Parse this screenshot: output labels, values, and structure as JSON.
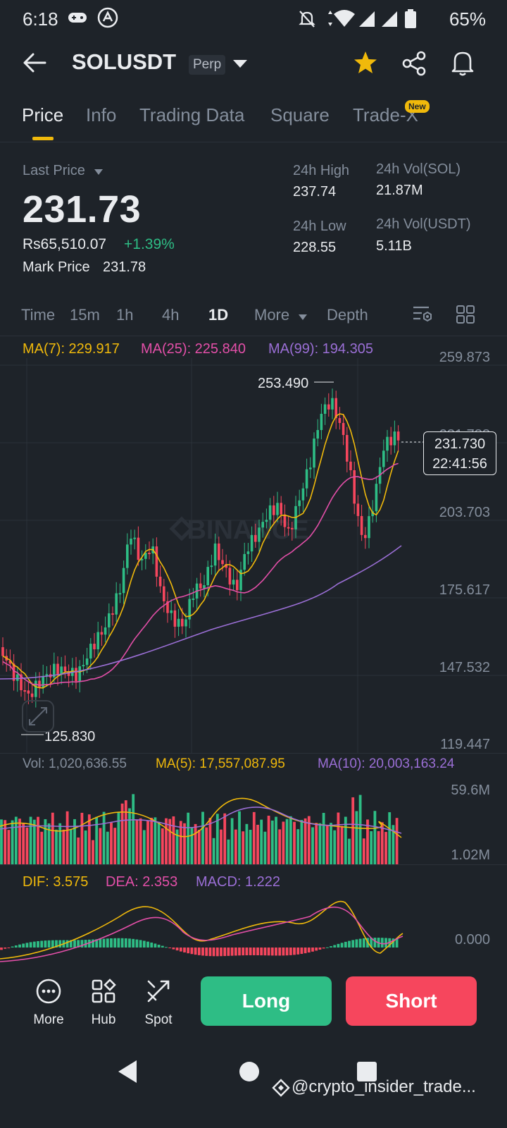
{
  "status": {
    "time": "6:18",
    "battery": "65%"
  },
  "header": {
    "symbol": "SOLUSDT",
    "badge": "Perp"
  },
  "tabs": [
    {
      "label": "Price",
      "active": true
    },
    {
      "label": "Info"
    },
    {
      "label": "Trading Data"
    },
    {
      "label": "Square"
    },
    {
      "label": "Trade-X",
      "badge": "New"
    }
  ],
  "price": {
    "last_label": "Last Price",
    "last": "231.73",
    "fiat": "Rs65,510.07",
    "change": "+1.39%",
    "mark_label": "Mark Price",
    "mark": "231.78"
  },
  "stats": {
    "high_label": "24h High",
    "high": "237.74",
    "low_label": "24h Low",
    "low": "228.55",
    "vol_sol_label": "24h Vol(SOL)",
    "vol_sol": "21.87M",
    "vol_usdt_label": "24h Vol(USDT)",
    "vol_usdt": "5.11B"
  },
  "intervals": [
    {
      "label": "Time"
    },
    {
      "label": "15m"
    },
    {
      "label": "1h"
    },
    {
      "label": "4h"
    },
    {
      "label": "1D",
      "active": true
    },
    {
      "label": "More"
    },
    {
      "label": "Depth"
    }
  ],
  "ma": {
    "ma7": "MA(7): 229.917",
    "ma25": "MA(25): 225.840",
    "ma99": "MA(99): 194.305"
  },
  "price_axis": [
    "259.873",
    "231.788",
    "203.703",
    "175.617",
    "147.532",
    "119.447"
  ],
  "high_marker": "253.490",
  "low_marker": "125.830",
  "price_tag": {
    "price": "231.730",
    "countdown": "22:41:56"
  },
  "watermark_chart": "BINANCE",
  "volume": {
    "vol": "Vol: 1,020,636.55",
    "ma5": "MA(5): 17,557,087.95",
    "ma10": "MA(10): 20,003,163.24",
    "max": "59.6M",
    "min": "1.02M"
  },
  "macd": {
    "dif": "DIF: 3.575",
    "dea": "DEA: 2.353",
    "macd": "MACD: 1.222",
    "zero": "0.000"
  },
  "bottom": {
    "more": "More",
    "hub": "Hub",
    "spot": "Spot",
    "long": "Long",
    "short": "Short"
  },
  "footer_watermark": "@crypto_insider_trade...",
  "colors": {
    "up": "#2ebd85",
    "down": "#f6465d",
    "accent": "#f0b90b",
    "ma7": "#f0b90b",
    "ma25": "#e34fa8",
    "ma99": "#9b6fd6"
  }
}
